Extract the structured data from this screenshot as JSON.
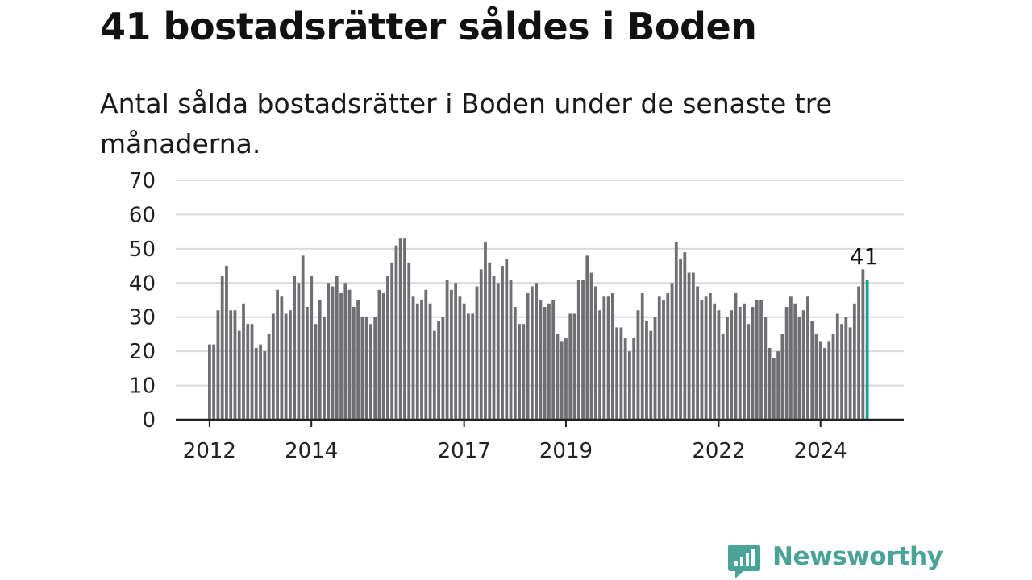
{
  "title": "41 bostadsrätter såldes i Boden",
  "subtitle": "Antal sålda bostadsrätter i Boden under de senaste tre månaderna.",
  "logo": {
    "text": "Newsworthy",
    "color": "#4aa397",
    "icon": "newsworthy-chat-bars-icon"
  },
  "chart_data": {
    "type": "bar",
    "title": "",
    "xlabel": "",
    "ylabel": "",
    "ylim": [
      0,
      70
    ],
    "yticks": [
      0,
      10,
      20,
      30,
      40,
      50,
      60,
      70
    ],
    "xticks": [
      "2012",
      "2014",
      "2017",
      "2019",
      "2022",
      "2024"
    ],
    "grid": true,
    "bar_color": "#6f6e73",
    "highlight_color": "#1aa098",
    "highlight_label": "41",
    "series": [
      {
        "values": [
          22,
          22,
          32,
          42,
          45,
          32,
          32,
          26,
          34,
          28,
          28,
          21,
          22,
          20,
          25,
          31,
          38,
          36,
          31,
          32,
          42,
          40,
          48,
          33,
          42,
          28,
          35,
          30,
          40,
          39,
          42,
          37,
          40,
          38,
          33,
          35,
          30,
          30,
          28,
          30,
          38,
          37,
          42,
          46,
          51,
          53,
          53,
          46,
          36,
          34,
          35,
          38,
          34,
          26,
          29,
          30,
          41,
          38,
          40,
          36,
          34,
          31,
          31,
          39,
          44,
          52,
          46,
          42,
          40,
          45,
          47,
          41,
          33,
          28,
          28,
          37,
          39,
          40,
          35,
          33,
          34,
          35,
          25,
          23,
          24,
          31,
          31,
          41,
          41,
          48,
          43,
          39,
          32,
          36,
          36,
          37,
          27,
          27,
          24,
          20,
          24,
          32,
          37,
          29,
          26,
          30,
          36,
          35,
          37,
          40,
          52,
          47,
          49,
          43,
          43,
          39,
          35,
          36,
          37,
          34,
          32,
          25,
          30,
          32,
          37,
          33,
          34,
          28,
          33,
          35,
          35,
          30,
          21,
          18,
          20,
          25,
          33,
          36,
          34,
          30,
          32,
          36,
          29,
          25,
          23,
          21,
          23,
          25,
          31,
          28,
          30,
          27,
          34,
          39,
          44,
          41
        ]
      }
    ]
  }
}
